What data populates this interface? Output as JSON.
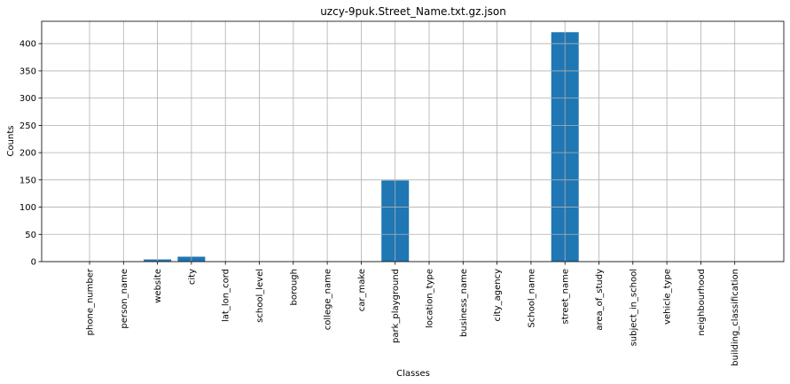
{
  "chart_data": {
    "type": "bar",
    "title": "uzcy-9puk.Street_Name.txt.gz.json",
    "xlabel": "Classes",
    "ylabel": "Counts",
    "categories": [
      "phone_number",
      "person_name",
      "website",
      "city",
      "lat_lon_cord",
      "school_level",
      "borough",
      "college_name",
      "car_make",
      "park_playground",
      "location_type",
      "business_name",
      "city_agency",
      "School_name",
      "street_name",
      "area_of_study",
      "subject_in_school",
      "vehicle_type",
      "neighbourhood",
      "building_classification"
    ],
    "values": [
      0,
      0,
      4,
      9,
      0,
      0,
      0,
      0,
      0,
      149,
      0,
      0,
      0,
      0,
      421,
      0,
      0,
      0,
      0,
      0
    ],
    "ylim": [
      0,
      441
    ],
    "yticks": [
      0,
      50,
      100,
      150,
      200,
      250,
      300,
      350,
      400
    ],
    "bar_color": "#1f77b4",
    "grid": true
  }
}
